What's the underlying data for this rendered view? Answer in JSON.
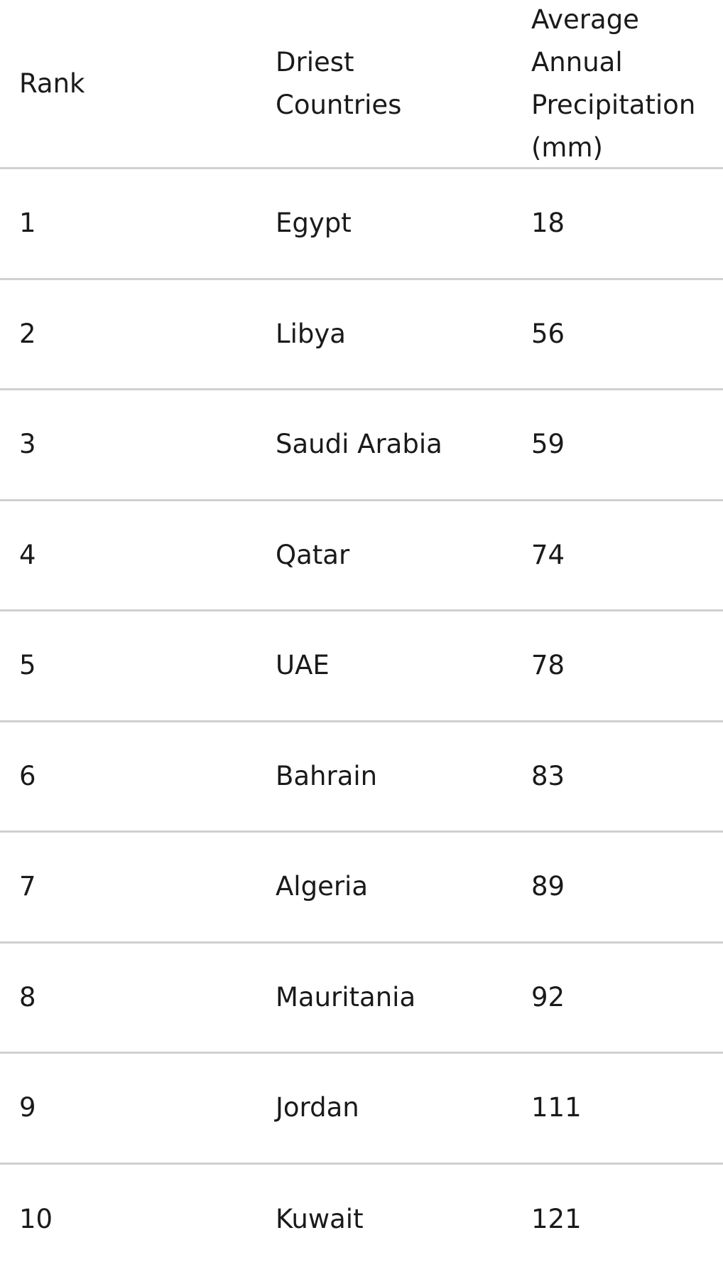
{
  "table": {
    "header": [
      "Rank",
      "Driest Countries",
      "Average Annual Precipitation (mm)"
    ],
    "rows": [
      [
        1,
        "Egypt",
        18
      ],
      [
        2,
        "Libya",
        56
      ],
      [
        3,
        "Saudi Arabia",
        59
      ],
      [
        4,
        "Qatar",
        74
      ],
      [
        5,
        "UAE",
        78
      ],
      [
        6,
        "Bahrain",
        83
      ],
      [
        7,
        "Algeria",
        89
      ],
      [
        8,
        "Mauritania",
        92
      ],
      [
        9,
        "Jordan",
        111
      ],
      [
        10,
        "Kuwait",
        121
      ]
    ]
  }
}
